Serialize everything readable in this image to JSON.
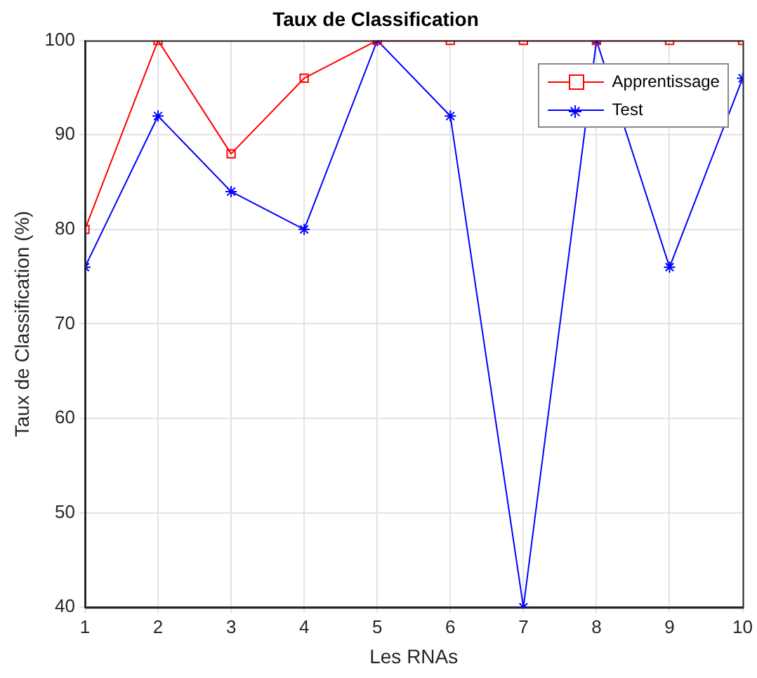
{
  "chart_data": {
    "type": "line",
    "title": "Taux de Classification",
    "xlabel": "Les RNAs",
    "ylabel": "Taux de Classification (%)",
    "x": [
      1,
      2,
      3,
      4,
      5,
      6,
      7,
      8,
      9,
      10
    ],
    "series": [
      {
        "name": "Apprentissage",
        "color": "#ff0000",
        "marker": "square",
        "values": [
          80,
          100,
          88,
          96,
          100,
          100,
          100,
          100,
          100,
          100
        ]
      },
      {
        "name": "Test",
        "color": "#0000ff",
        "marker": "cross",
        "values": [
          76,
          92,
          84,
          80,
          100,
          92,
          40,
          100,
          76,
          96
        ]
      }
    ],
    "xlim": [
      1,
      10
    ],
    "xticks": [
      1,
      2,
      3,
      4,
      5,
      6,
      7,
      8,
      9,
      10
    ],
    "ylim": [
      40,
      100
    ],
    "yticks": [
      40,
      50,
      60,
      70,
      80,
      90,
      100
    ],
    "grid": true,
    "legend": "top right",
    "line_style": "solid"
  }
}
